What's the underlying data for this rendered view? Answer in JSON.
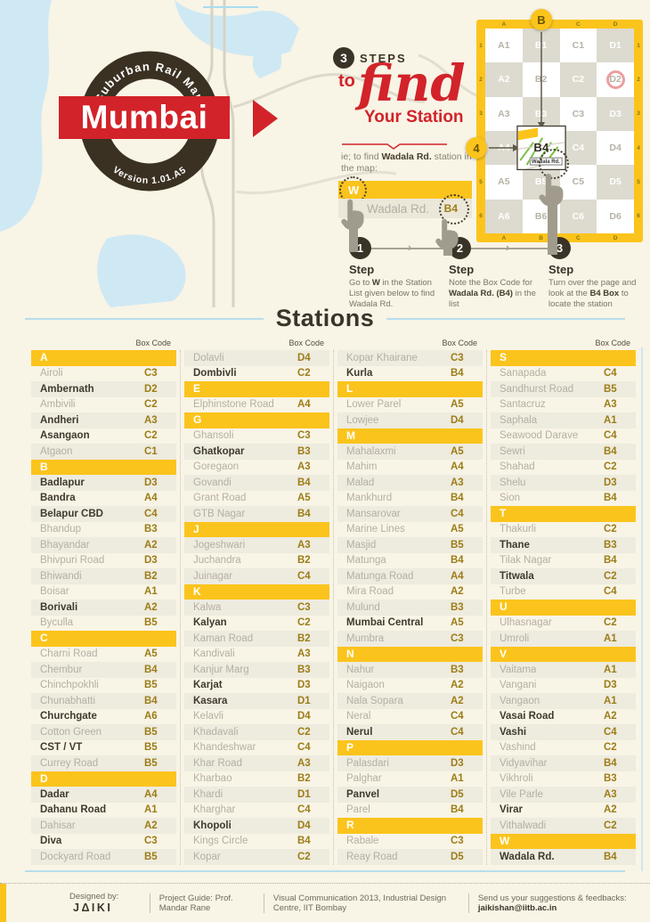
{
  "badge": {
    "arc_top": "Suburban Rail Map",
    "title": "Mumbai",
    "arc_bottom": "Version 1.01.A5"
  },
  "howto": {
    "steps_count": "3",
    "steps_word": "STEPS",
    "to": "to",
    "find": "find",
    "your_station": "Your Station",
    "intro_segments": [
      {
        "t": "ie; to find ",
        "b": false
      },
      {
        "t": "Wadala Rd.",
        "b": true
      },
      {
        "t": " station in the map:",
        "b": false
      }
    ],
    "sample_letter": "W",
    "sample_station": "Wadala Rd.",
    "sample_code": "B4",
    "steps": [
      {
        "num": "1",
        "label": "Step",
        "desc": [
          {
            "t": "Go to ",
            "b": false
          },
          {
            "t": "W",
            "b": true
          },
          {
            "t": " in the Station List given below to find Wadala Rd.",
            "b": false
          }
        ]
      },
      {
        "num": "2",
        "label": "Step",
        "desc": [
          {
            "t": "Note the Box Code for ",
            "b": false
          },
          {
            "t": "Wadala Rd. (B4)",
            "b": true
          },
          {
            "t": " in the list",
            "b": false
          }
        ]
      },
      {
        "num": "3",
        "label": "Step",
        "desc": [
          {
            "t": "Turn over the page and look at the ",
            "b": false
          },
          {
            "t": "B4 Box",
            "b": true
          },
          {
            "t": " to locate the station",
            "b": false
          }
        ]
      }
    ]
  },
  "grid": {
    "col_labels": [
      "A",
      "B",
      "C",
      "D"
    ],
    "row_labels": [
      "1",
      "2",
      "3",
      "4",
      "5",
      "6"
    ],
    "cells": [
      [
        "A1",
        "B1",
        "C1",
        "D1"
      ],
      [
        "A2",
        "B2",
        "C2",
        "D2"
      ],
      [
        "A3",
        "B3",
        "C3",
        "D3"
      ],
      [
        "A4",
        "B4",
        "C4",
        "D4"
      ],
      [
        "A5",
        "B5",
        "C5",
        "D5"
      ],
      [
        "A6",
        "B6",
        "C6",
        "D6"
      ]
    ],
    "highlight": "B4",
    "marker_top": "B",
    "marker_left": "4",
    "cell_station": "Wadala Rd."
  },
  "stations": {
    "title": "Stations",
    "box_code_label": "Box Code",
    "columns": [
      [
        {
          "h": "A"
        },
        {
          "n": "Airoli",
          "c": "C3"
        },
        {
          "n": "Ambernath",
          "c": "D2",
          "b": 1
        },
        {
          "n": "Ambivili",
          "c": "C2"
        },
        {
          "n": "Andheri",
          "c": "A3",
          "b": 1
        },
        {
          "n": "Asangaon",
          "c": "C2",
          "b": 1
        },
        {
          "n": "Atgaon",
          "c": "C1"
        },
        {
          "h": "B"
        },
        {
          "n": "Badlapur",
          "c": "D3",
          "b": 1
        },
        {
          "n": "Bandra",
          "c": "A4",
          "b": 1
        },
        {
          "n": "Belapur CBD",
          "c": "C4",
          "b": 1
        },
        {
          "n": "Bhandup",
          "c": "B3"
        },
        {
          "n": "Bhayandar",
          "c": "A2"
        },
        {
          "n": "Bhivpuri Road",
          "c": "D3"
        },
        {
          "n": "Bhiwandi",
          "c": "B2"
        },
        {
          "n": "Boisar",
          "c": "A1"
        },
        {
          "n": "Borivali",
          "c": "A2",
          "b": 1
        },
        {
          "n": "Byculla",
          "c": "B5"
        },
        {
          "h": "C"
        },
        {
          "n": "Charni Road",
          "c": "A5"
        },
        {
          "n": "Chembur",
          "c": "B4"
        },
        {
          "n": "Chinchpokhli",
          "c": "B5"
        },
        {
          "n": "Chunabhatti",
          "c": "B4"
        },
        {
          "n": "Churchgate",
          "c": "A6",
          "b": 1
        },
        {
          "n": "Cotton Green",
          "c": "B5"
        },
        {
          "n": "CST / VT",
          "c": "B5",
          "b": 1
        },
        {
          "n": "Currey Road",
          "c": "B5"
        },
        {
          "h": "D"
        },
        {
          "n": "Dadar",
          "c": "A4",
          "b": 1
        },
        {
          "n": "Dahanu Road",
          "c": "A1",
          "b": 1
        },
        {
          "n": "Dahisar",
          "c": "A2"
        },
        {
          "n": "Diva",
          "c": "C3",
          "b": 1
        },
        {
          "n": "Dockyard Road",
          "c": "B5"
        }
      ],
      [
        {
          "n": "Dolavli",
          "c": "D4"
        },
        {
          "n": "Dombivli",
          "c": "C2",
          "b": 1
        },
        {
          "h": "E"
        },
        {
          "n": "Elphinstone Road",
          "c": "A4"
        },
        {
          "h": "G"
        },
        {
          "n": "Ghansoli",
          "c": "C3"
        },
        {
          "n": "Ghatkopar",
          "c": "B3",
          "b": 1
        },
        {
          "n": "Goregaon",
          "c": "A3"
        },
        {
          "n": "Govandi",
          "c": "B4"
        },
        {
          "n": "Grant Road",
          "c": "A5"
        },
        {
          "n": "GTB Nagar",
          "c": "B4"
        },
        {
          "h": "J"
        },
        {
          "n": "Jogeshwari",
          "c": "A3"
        },
        {
          "n": "Juchandra",
          "c": "B2"
        },
        {
          "n": "Juinagar",
          "c": "C4"
        },
        {
          "h": "K"
        },
        {
          "n": "Kalwa",
          "c": "C3"
        },
        {
          "n": "Kalyan",
          "c": "C2",
          "b": 1
        },
        {
          "n": "Kaman Road",
          "c": "B2"
        },
        {
          "n": "Kandivali",
          "c": "A3"
        },
        {
          "n": "Kanjur Marg",
          "c": "B3"
        },
        {
          "n": "Karjat",
          "c": "D3",
          "b": 1
        },
        {
          "n": "Kasara",
          "c": "D1",
          "b": 1
        },
        {
          "n": "Kelavli",
          "c": "D4"
        },
        {
          "n": "Khadavali",
          "c": "C2"
        },
        {
          "n": "Khandeshwar",
          "c": "C4"
        },
        {
          "n": "Khar Road",
          "c": "A3"
        },
        {
          "n": "Kharbao",
          "c": "B2"
        },
        {
          "n": "Khardi",
          "c": "D1"
        },
        {
          "n": "Kharghar",
          "c": "C4"
        },
        {
          "n": "Khopoli",
          "c": "D4",
          "b": 1
        },
        {
          "n": "Kings Circle",
          "c": "B4"
        },
        {
          "n": "Kopar",
          "c": "C2"
        }
      ],
      [
        {
          "n": "Kopar Khairane",
          "c": "C3"
        },
        {
          "n": "Kurla",
          "c": "B4",
          "b": 1
        },
        {
          "h": "L"
        },
        {
          "n": "Lower Parel",
          "c": "A5"
        },
        {
          "n": "Lowjee",
          "c": "D4"
        },
        {
          "h": "M"
        },
        {
          "n": "Mahalaxmi",
          "c": "A5"
        },
        {
          "n": "Mahim",
          "c": "A4"
        },
        {
          "n": "Malad",
          "c": "A3"
        },
        {
          "n": "Mankhurd",
          "c": "B4"
        },
        {
          "n": "Mansarovar",
          "c": "C4"
        },
        {
          "n": "Marine Lines",
          "c": "A5"
        },
        {
          "n": "Masjid",
          "c": "B5"
        },
        {
          "n": "Matunga",
          "c": "B4"
        },
        {
          "n": "Matunga Road",
          "c": "A4"
        },
        {
          "n": "Mira Road",
          "c": "A2"
        },
        {
          "n": "Mulund",
          "c": "B3"
        },
        {
          "n": "Mumbai Central",
          "c": "A5",
          "b": 1
        },
        {
          "n": "Mumbra",
          "c": "C3"
        },
        {
          "h": "N"
        },
        {
          "n": "Nahur",
          "c": "B3"
        },
        {
          "n": "Naigaon",
          "c": "A2"
        },
        {
          "n": "Nala Sopara",
          "c": "A2"
        },
        {
          "n": "Neral",
          "c": "C4"
        },
        {
          "n": "Nerul",
          "c": "C4",
          "b": 1
        },
        {
          "h": "P"
        },
        {
          "n": "Palasdari",
          "c": "D3"
        },
        {
          "n": "Palghar",
          "c": "A1"
        },
        {
          "n": "Panvel",
          "c": "D5",
          "b": 1
        },
        {
          "n": "Parel",
          "c": "B4"
        },
        {
          "h": "R"
        },
        {
          "n": "Rabale",
          "c": "C3"
        },
        {
          "n": "Reay Road",
          "c": "D5"
        }
      ],
      [
        {
          "h": "S"
        },
        {
          "n": "Sanapada",
          "c": "C4"
        },
        {
          "n": "Sandhurst Road",
          "c": "B5"
        },
        {
          "n": "Santacruz",
          "c": "A3"
        },
        {
          "n": "Saphala",
          "c": "A1"
        },
        {
          "n": "Seawood Darave",
          "c": "C4"
        },
        {
          "n": "Sewri",
          "c": "B4"
        },
        {
          "n": "Shahad",
          "c": "C2"
        },
        {
          "n": "Shelu",
          "c": "D3"
        },
        {
          "n": "Sion",
          "c": "B4"
        },
        {
          "h": "T"
        },
        {
          "n": "Thakurli",
          "c": "C2"
        },
        {
          "n": "Thane",
          "c": "B3",
          "b": 1
        },
        {
          "n": "Tilak Nagar",
          "c": "B4"
        },
        {
          "n": "Titwala",
          "c": "C2",
          "b": 1
        },
        {
          "n": "Turbe",
          "c": "C4"
        },
        {
          "h": "U"
        },
        {
          "n": "Ulhasnagar",
          "c": "C2"
        },
        {
          "n": "Umroli",
          "c": "A1"
        },
        {
          "h": "V"
        },
        {
          "n": "Vaitama",
          "c": "A1"
        },
        {
          "n": "Vangani",
          "c": "D3"
        },
        {
          "n": "Vangaon",
          "c": "A1"
        },
        {
          "n": "Vasai Road",
          "c": "A2",
          "b": 1
        },
        {
          "n": "Vashi",
          "c": "C4",
          "b": 1
        },
        {
          "n": "Vashind",
          "c": "C2"
        },
        {
          "n": "Vidyavihar",
          "c": "B4"
        },
        {
          "n": "Vikhroli",
          "c": "B3"
        },
        {
          "n": "Vile Parle",
          "c": "A3"
        },
        {
          "n": "Virar",
          "c": "A2",
          "b": 1
        },
        {
          "n": "Vithalwadi",
          "c": "C2"
        },
        {
          "h": "W"
        },
        {
          "n": "Wadala Rd.",
          "c": "B4",
          "b": 1
        }
      ]
    ]
  },
  "footer": {
    "designed_by": "Designed by:",
    "logo": "JΔIKI",
    "items": [
      "Project Guide: Prof. Mandar Rane",
      "Visual Communication 2013, Industrial Design Centre, IIT Bombay"
    ],
    "feedback_label": "Send us your suggestions & feedbacks:",
    "feedback_email": "jaikishan@iitb.ac.in"
  },
  "colors": {
    "accent_yellow": "#fbc41c",
    "brand_red": "#d2232a",
    "dark": "#3a3327",
    "code_gold": "#9c7d17",
    "water_blue": "#cfe9f4",
    "rule_blue": "#b8ddec"
  }
}
